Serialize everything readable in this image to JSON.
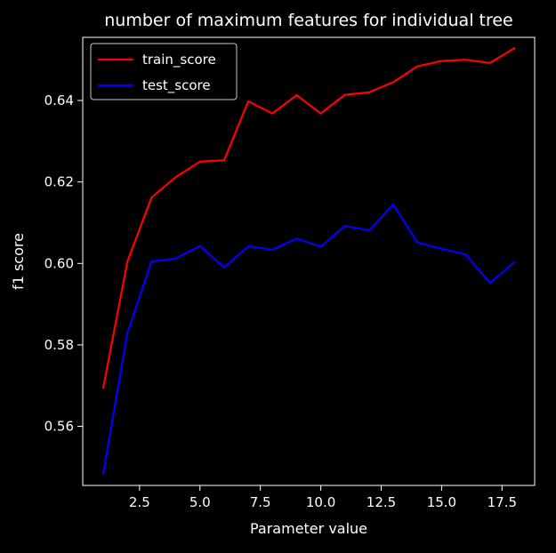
{
  "chart_data": {
    "type": "line",
    "title": "number of maximum features for individual tree",
    "xlabel": "Parameter value",
    "ylabel": "f1 score",
    "xlim": [
      0.15,
      18.85
    ],
    "ylim": [
      0.5455,
      0.6555
    ],
    "xticks": [
      2.5,
      5.0,
      7.5,
      10.0,
      12.5,
      15.0,
      17.5
    ],
    "xtick_labels": [
      "2.5",
      "5.0",
      "7.5",
      "10.0",
      "12.5",
      "15.0",
      "17.5"
    ],
    "yticks": [
      0.56,
      0.58,
      0.6,
      0.62,
      0.64
    ],
    "ytick_labels": [
      "0.56",
      "0.58",
      "0.60",
      "0.62",
      "0.64"
    ],
    "grid": false,
    "legend_position": "upper-left",
    "x": [
      1,
      2,
      3,
      4,
      5,
      6,
      7,
      8,
      9,
      10,
      11,
      12,
      13,
      14,
      15,
      16,
      17,
      18
    ],
    "series": [
      {
        "name": "train_score",
        "color": "#ff0000",
        "values": [
          0.5695,
          0.6005,
          0.6162,
          0.6212,
          0.625,
          0.6253,
          0.6398,
          0.6368,
          0.6413,
          0.6368,
          0.6414,
          0.642,
          0.6445,
          0.6484,
          0.6497,
          0.65,
          0.6492,
          0.6528
        ]
      },
      {
        "name": "test_score",
        "color": "#0000ff",
        "values": [
          0.5485,
          0.583,
          0.6005,
          0.6012,
          0.6043,
          0.599,
          0.6042,
          0.6034,
          0.6061,
          0.6041,
          0.6092,
          0.6081,
          0.6145,
          0.6051,
          0.6036,
          0.6022,
          0.5952,
          0.6002
        ]
      }
    ],
    "colors": {
      "background": "#000000",
      "foreground": "#ffffff"
    }
  }
}
